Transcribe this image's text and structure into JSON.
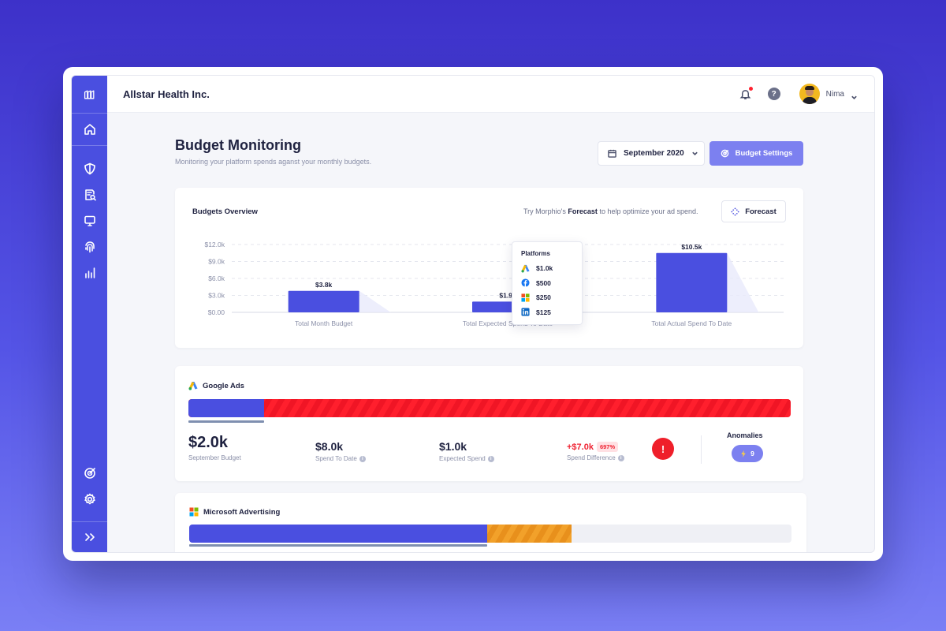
{
  "topbar": {
    "company": "Allstar Health Inc.",
    "user_name": "Nima"
  },
  "page": {
    "title": "Budget Monitoring",
    "subtitle": "Monitoring your platform spends aganst your monthly budgets.",
    "date_selector": "September 2020",
    "settings_button": "Budget Settings"
  },
  "overview": {
    "title": "Budgets Overview",
    "hint_prefix": "Try Morphio's ",
    "hint_bold": "Forecast",
    "hint_suffix": " to help optimize your ad spend.",
    "forecast_button": "Forecast",
    "tooltip": {
      "title": "Platforms",
      "rows": [
        {
          "icon": "google-ads-icon",
          "value": "$1.0k"
        },
        {
          "icon": "facebook-icon",
          "value": "$500"
        },
        {
          "icon": "microsoft-icon",
          "value": "$250"
        },
        {
          "icon": "linkedin-icon",
          "value": "$125"
        }
      ]
    }
  },
  "chart_data": {
    "type": "bar",
    "categories": [
      "Total Month Budget",
      "Total Expected Spend To Date",
      "Total Actual Spend To Date"
    ],
    "values": [
      3800,
      1900,
      10500
    ],
    "data_labels": [
      "$3.8k",
      "$1.9k",
      "$10.5k"
    ],
    "y_ticks": [
      "$0.00",
      "$3.0k",
      "$6.0k",
      "$9.0k",
      "$12.0k"
    ],
    "ylim": [
      0,
      12000
    ],
    "grid": true,
    "bar_color": "#4a4fe0"
  },
  "platforms": {
    "google": {
      "name": "Google Ads",
      "budget_fraction": 0.125,
      "budget": "$2.0k",
      "budget_label": "September Budget",
      "spend": "$8.0k",
      "spend_label": "Spend To Date",
      "expected": "$1.0k",
      "expected_label": "Expected Spend",
      "difference": "+$7.0k",
      "difference_pct": "697%",
      "difference_label": "Spend Difference",
      "alert": "!",
      "anomalies_title": "Anomalies",
      "anomalies_count": "9"
    },
    "microsoft": {
      "name": "Microsoft Advertising",
      "spend_fraction": 0.495,
      "overage_fraction": 0.14
    }
  },
  "colors": {
    "primary": "#4a4fe0",
    "over_budget": "#ff1f2d",
    "warning": "#f2a12a",
    "button": "#7c80f0"
  }
}
